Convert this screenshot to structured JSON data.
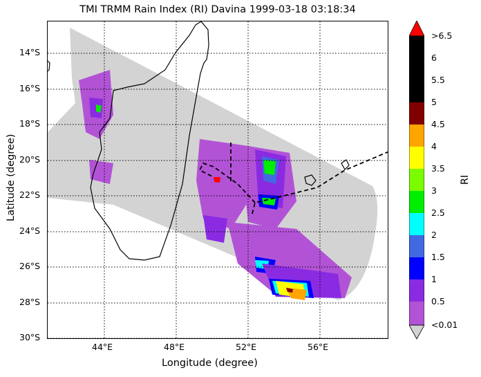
{
  "title": "TMI TRMM Rain Index (RI) Davina 1999-03-18 03:18:34",
  "axes": {
    "xlabel": "Longitude (degree)",
    "ylabel": "Latitude (degree)",
    "x_ticks": [
      "44°E",
      "48°E",
      "52°E",
      "56°E"
    ],
    "y_ticks": [
      "14°S",
      "16°S",
      "18°S",
      "20°S",
      "22°S",
      "24°S",
      "26°S",
      "28°S",
      "30°S"
    ]
  },
  "colorbar": {
    "title": "RI",
    "labels": [
      "<0.01",
      "0.5",
      "1",
      "1.5",
      "2",
      "2.5",
      "3",
      "3.5",
      "4",
      "4.5",
      "5",
      "5.5",
      "6",
      ">6.5"
    ],
    "colors": [
      "#b253d6",
      "#8a2be2",
      "#0000ff",
      "#4169e1",
      "#00ffff",
      "#00ee00",
      "#7cfc00",
      "#ffff00",
      "#ffa500",
      "#800000",
      "#000000",
      "#000000",
      "#000000"
    ],
    "over_color": "#ff0000",
    "under_color": "#d3d3d3"
  },
  "map": {
    "swath_color": "#d3d3d3",
    "coastline_color": "#000000",
    "track_style": "dashed",
    "grid": "dotted"
  }
}
